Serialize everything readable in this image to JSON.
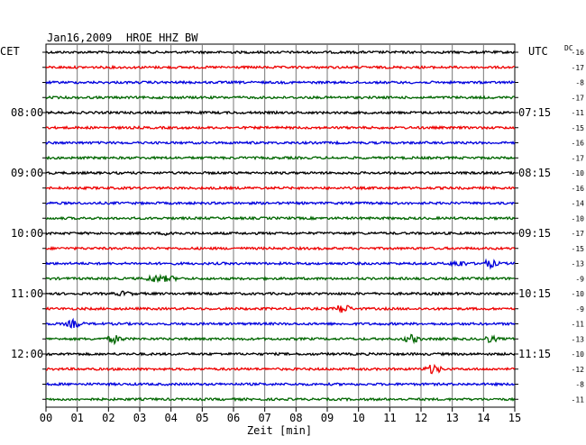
{
  "header": {
    "date": "Jan16,2009",
    "station": "HROE HHZ BW"
  },
  "left_axis_label": "CET",
  "right_axis_label": "UTC",
  "dc_label": "DC",
  "chart_data": {
    "type": "line",
    "xlabel": "Zeit [min]",
    "xlim": [
      0,
      15
    ],
    "x_ticks": [
      "00",
      "01",
      "02",
      "03",
      "04",
      "05",
      "06",
      "07",
      "08",
      "09",
      "10",
      "11",
      "12",
      "13",
      "14",
      "15"
    ],
    "trace_colors": [
      "#000000",
      "#ee0000",
      "#0000dd",
      "#006600"
    ],
    "left_time_labels": [
      {
        "trace": 4,
        "text": "08:00"
      },
      {
        "trace": 8,
        "text": "09:00"
      },
      {
        "trace": 12,
        "text": "10:00"
      },
      {
        "trace": 16,
        "text": "11:00"
      },
      {
        "trace": 20,
        "text": "12:00"
      }
    ],
    "right_time_labels": [
      {
        "trace": 4,
        "text": "07:15"
      },
      {
        "trace": 8,
        "text": "08:15"
      },
      {
        "trace": 12,
        "text": "09:15"
      },
      {
        "trace": 16,
        "text": "10:15"
      },
      {
        "trace": 20,
        "text": "11:15"
      }
    ],
    "dc_offsets": [
      -16,
      -17,
      -8,
      -17,
      -11,
      -15,
      -16,
      -17,
      -10,
      -16,
      -14,
      -10,
      -17,
      -15,
      -13,
      -9,
      -10,
      -9,
      -11,
      -13,
      -10,
      -12,
      -8,
      -11
    ],
    "events": [
      {
        "trace": 15,
        "x": 3.5,
        "amp": 4
      },
      {
        "trace": 15,
        "x": 3.9,
        "amp": 3
      },
      {
        "trace": 16,
        "x": 2.5,
        "amp": 2
      },
      {
        "trace": 17,
        "x": 9.5,
        "amp": 5
      },
      {
        "trace": 18,
        "x": 0.9,
        "amp": 4
      },
      {
        "trace": 19,
        "x": 2.2,
        "amp": 4
      },
      {
        "trace": 19,
        "x": 11.7,
        "amp": 4
      },
      {
        "trace": 19,
        "x": 14.2,
        "amp": 3
      },
      {
        "trace": 14,
        "x": 13.2,
        "amp": 3
      },
      {
        "trace": 14,
        "x": 14.2,
        "amp": 4
      },
      {
        "trace": 21,
        "x": 12.4,
        "amp": 5
      },
      {
        "trace": 12,
        "x": 4.0,
        "amp": 2
      }
    ]
  }
}
